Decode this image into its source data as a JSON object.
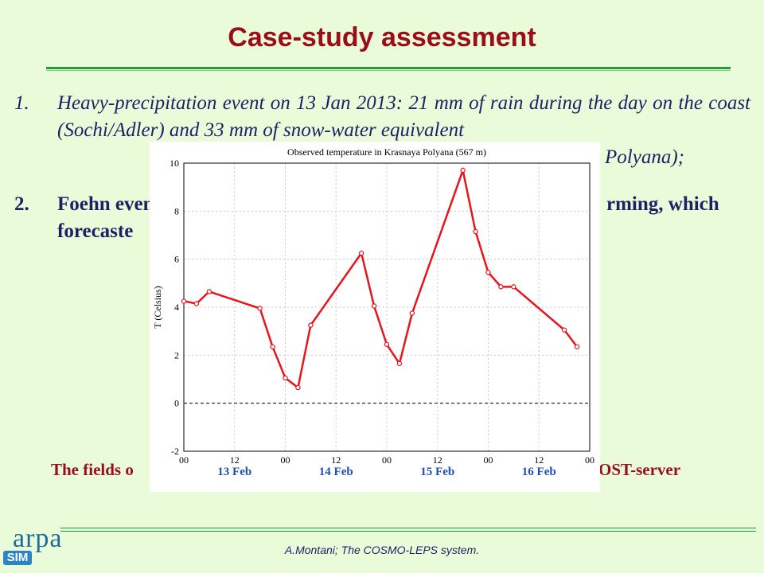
{
  "slide": {
    "title": "Case-study assessment",
    "items": [
      {
        "number": "1.",
        "text": "Heavy-precipitation event on 13 Jan 2013: 21 mm of rain during the day on the coast (Sochi/Adler)  and 33 mm of snow-water equivalent"
      },
      {
        "number": "2.",
        "text": "Foehn event"
      }
    ],
    "item1_tail": "Polyana);",
    "item2_line1_tail": "rming, which",
    "item2_line2": "forecaste",
    "caption_left": "The fields o",
    "caption_right": "OST-server",
    "footer": "A.Montani; The COSMO-LEPS system.",
    "logo_text": "arpa",
    "logo_badge": "SIM"
  },
  "colors": {
    "background": "#e9fbd9",
    "title": "#9b0d1c",
    "body_text": "#1f1f66",
    "rule": "#1f9d3a",
    "series": "#e8141b"
  },
  "chart_data": {
    "type": "line",
    "title": "Observed temperature in Krasnaya Polyana (567 m)",
    "ylabel": "T (Celsius)",
    "xlabel": "",
    "ylim": [
      -2,
      10
    ],
    "xlim": [
      0,
      96
    ],
    "y_ticks": [
      -2,
      0,
      2,
      4,
      6,
      8,
      10
    ],
    "x_ticks": [
      0,
      12,
      24,
      36,
      48,
      60,
      72,
      84,
      96
    ],
    "x_tick_labels": [
      "00",
      "12",
      "00",
      "12",
      "00",
      "12",
      "00",
      "12",
      "00"
    ],
    "day_labels": [
      "13 Feb",
      "14 Feb",
      "15 Feb",
      "16 Feb"
    ],
    "grid": true,
    "zero_line": "dashed",
    "series": [
      {
        "color": "#e8141b",
        "x": [
          0,
          3,
          6,
          18,
          21,
          24,
          27,
          30,
          42,
          45,
          48,
          51,
          54,
          66,
          69,
          72,
          75,
          78,
          90,
          93
        ],
        "y": [
          4.25,
          4.15,
          4.65,
          3.95,
          2.35,
          1.05,
          0.65,
          3.25,
          6.25,
          4.05,
          2.45,
          1.65,
          3.75,
          9.7,
          7.15,
          5.45,
          4.85,
          4.85,
          3.05,
          2.35
        ]
      }
    ]
  }
}
